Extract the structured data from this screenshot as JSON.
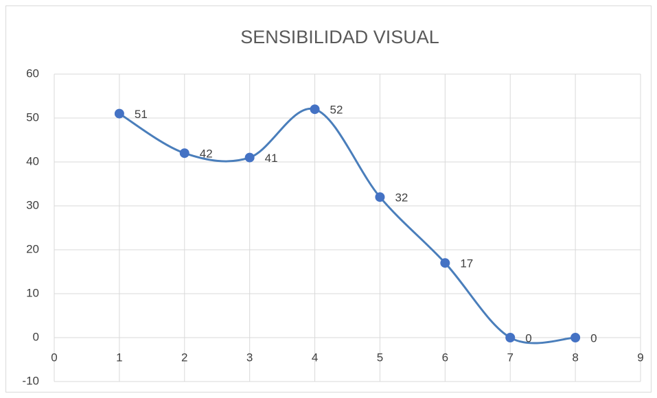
{
  "chart_data": {
    "type": "scatter_smooth",
    "title": "SENSIBILIDAD VISUAL",
    "x": [
      1,
      2,
      3,
      4,
      5,
      6,
      7,
      8
    ],
    "series": [
      {
        "name": "SENSIBILIDAD VISUAL",
        "color": "#4a7ebb",
        "values": [
          51,
          42,
          41,
          52,
          32,
          17,
          0,
          0
        ]
      }
    ],
    "xlim": [
      0,
      9
    ],
    "xticks": [
      0,
      1,
      2,
      3,
      4,
      5,
      6,
      7,
      8,
      9
    ],
    "ylim": [
      -10,
      60
    ],
    "yticks": [
      -10,
      0,
      10,
      20,
      30,
      40,
      50,
      60
    ],
    "grid": true
  }
}
